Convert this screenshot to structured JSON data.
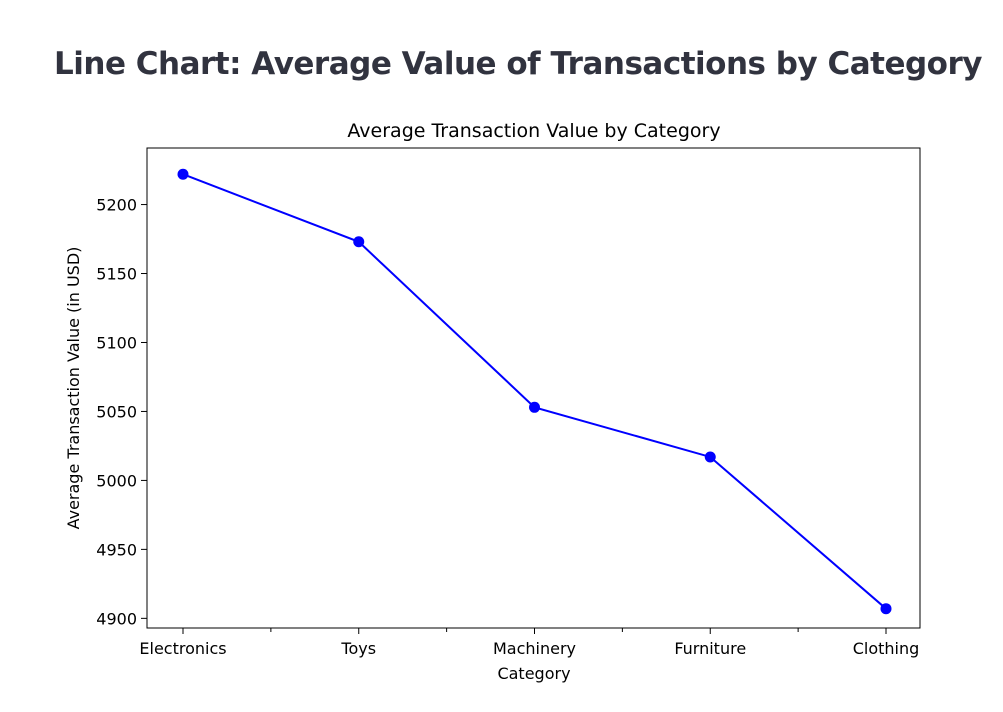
{
  "page": {
    "heading": "Line Chart: Average Value of Transactions by Category"
  },
  "colors": {
    "series": "#0000ff",
    "text": "#31333f",
    "axis": "#000000"
  },
  "chart_data": {
    "type": "line",
    "title": "Average Transaction Value by Category",
    "xlabel": "Category",
    "ylabel": "Average Transaction Value (in USD)",
    "categories": [
      "Electronics",
      "Toys",
      "Machinery",
      "Furniture",
      "Clothing"
    ],
    "values": [
      5222,
      5173,
      5053,
      5017,
      4907
    ],
    "ylim": [
      4893,
      5241
    ],
    "yticks": [
      4900,
      4950,
      5000,
      5050,
      5100,
      5150,
      5200
    ],
    "grid": false,
    "legend": "none",
    "marker": "circle"
  }
}
